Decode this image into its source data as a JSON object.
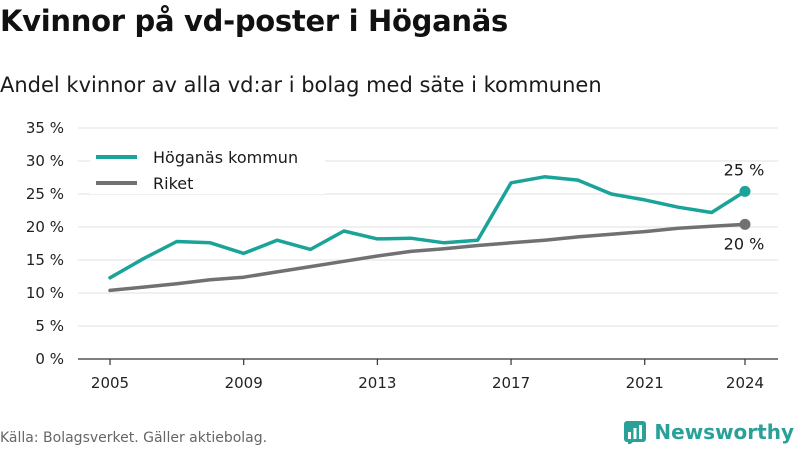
{
  "title": "Kvinnor på vd-poster i Höganäs",
  "subtitle": "Andel kvinnor av alla vd:ar i bolag med säte i kommunen",
  "source": "Källa: Bolagsverket. Gäller aktiebolag.",
  "brand": "Newsworthy",
  "chart_data": {
    "type": "line",
    "x": [
      2005,
      2006,
      2007,
      2008,
      2009,
      2010,
      2011,
      2012,
      2013,
      2014,
      2015,
      2016,
      2017,
      2018,
      2019,
      2020,
      2021,
      2022,
      2023,
      2024
    ],
    "x_ticks": [
      "2005",
      "2009",
      "2013",
      "2017",
      "2021",
      "2024"
    ],
    "y_ticks": [
      "0 %",
      "5 %",
      "10 %",
      "15 %",
      "20 %",
      "25 %",
      "30 %",
      "35 %"
    ],
    "ylim": [
      0,
      35
    ],
    "grid": true,
    "legend_position": "top-left",
    "series": [
      {
        "name": "Höganäs kommun",
        "color": "#1aa399",
        "values": [
          12.3,
          15.2,
          17.8,
          17.6,
          16.0,
          18.0,
          16.6,
          19.4,
          18.2,
          18.3,
          17.6,
          18.0,
          26.7,
          27.6,
          27.1,
          25.0,
          24.1,
          23.0,
          22.2,
          25.4
        ],
        "end_label": "25 %"
      },
      {
        "name": "Riket",
        "color": "#717174",
        "values": [
          10.4,
          10.9,
          11.4,
          12.0,
          12.4,
          13.2,
          14.0,
          14.8,
          15.6,
          16.3,
          16.7,
          17.2,
          17.6,
          18.0,
          18.5,
          18.9,
          19.3,
          19.8,
          20.1,
          20.4
        ],
        "end_label": "20 %"
      }
    ]
  }
}
